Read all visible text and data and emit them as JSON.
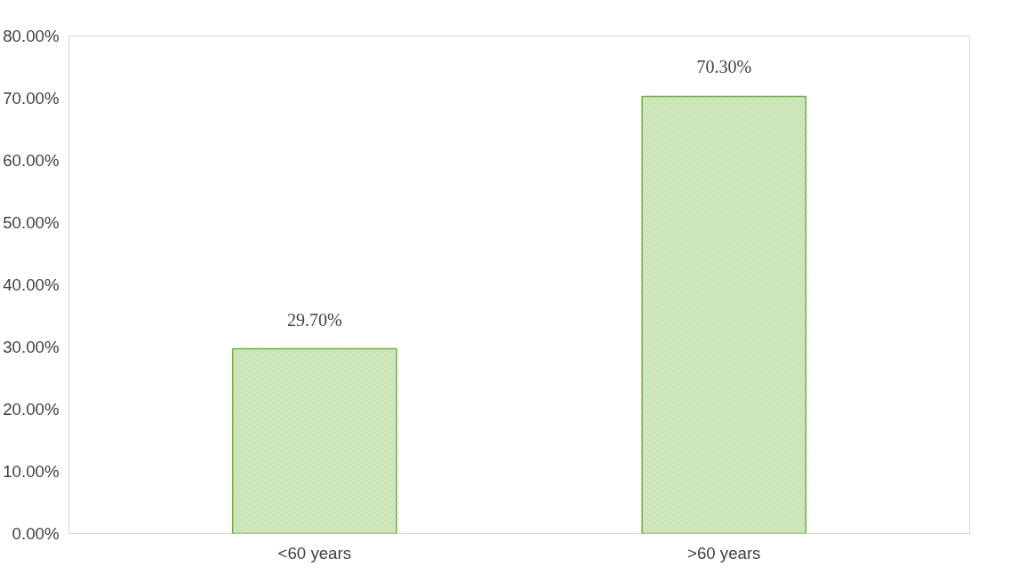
{
  "chart_data": {
    "type": "bar",
    "categories": [
      "<60 years",
      ">60 years"
    ],
    "values": [
      29.7,
      70.3
    ],
    "value_labels": [
      "29.70%",
      "70.30%"
    ],
    "color": "#d6ebc4",
    "ylim": [
      0,
      80
    ],
    "yticks": [
      {
        "value": 0,
        "label": "0.00%"
      },
      {
        "value": 10,
        "label": "10.00%"
      },
      {
        "value": 20,
        "label": "20.00%"
      },
      {
        "value": 30,
        "label": "30.00%"
      },
      {
        "value": 40,
        "label": "40.00%"
      },
      {
        "value": 50,
        "label": "50.00%"
      },
      {
        "value": 60,
        "label": "60.00%"
      },
      {
        "value": 70,
        "label": "70.00%"
      },
      {
        "value": 80,
        "label": "80.00%"
      }
    ],
    "grid": false
  }
}
